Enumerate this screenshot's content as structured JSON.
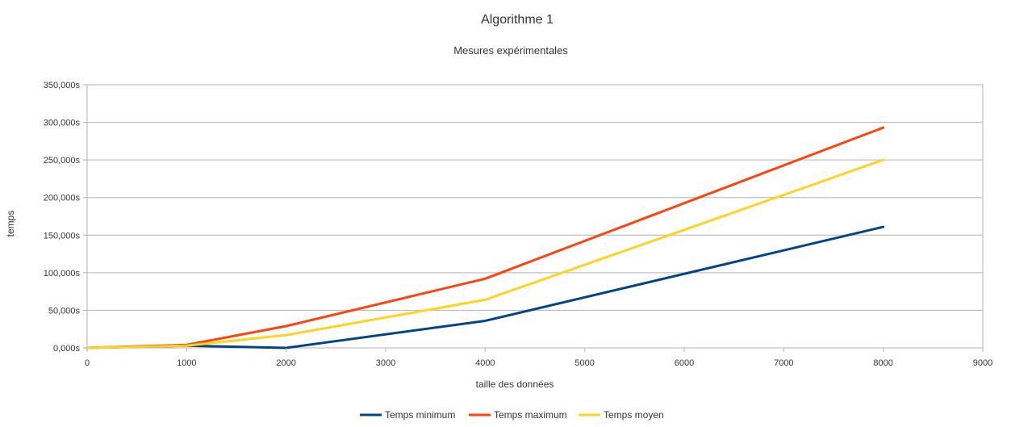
{
  "chart_data": {
    "type": "line",
    "title": "Algorithme 1",
    "subtitle": "Mesures expérimentales",
    "xlabel": "taille des données",
    "ylabel": "temps",
    "xlim": [
      0,
      9000
    ],
    "ylim": [
      0,
      350
    ],
    "x_ticks": [
      0,
      1000,
      2000,
      3000,
      4000,
      5000,
      6000,
      7000,
      8000,
      9000
    ],
    "x_tick_labels": [
      "0",
      "1000",
      "2000",
      "3000",
      "4000",
      "5000",
      "6000",
      "7000",
      "8000",
      "9000"
    ],
    "y_ticks": [
      0,
      50,
      100,
      150,
      200,
      250,
      300,
      350
    ],
    "y_tick_labels": [
      "0,000s",
      "50,000s",
      "100,000s",
      "150,000s",
      "200,000s",
      "250,000s",
      "300,000s",
      "350,000s"
    ],
    "grid": true,
    "legend_position": "bottom",
    "x": [
      0,
      1000,
      2000,
      4000,
      8000
    ],
    "series": [
      {
        "name": "Temps minimum",
        "color": "#004586",
        "values": [
          0,
          3,
          0,
          36,
          161
        ]
      },
      {
        "name": "Temps maximum",
        "color": "#ff420e",
        "values": [
          0,
          4,
          29,
          92,
          293
        ]
      },
      {
        "name": "Temps moyen",
        "color": "#ffd320",
        "values": [
          0,
          3,
          17,
          64,
          250
        ]
      }
    ]
  }
}
